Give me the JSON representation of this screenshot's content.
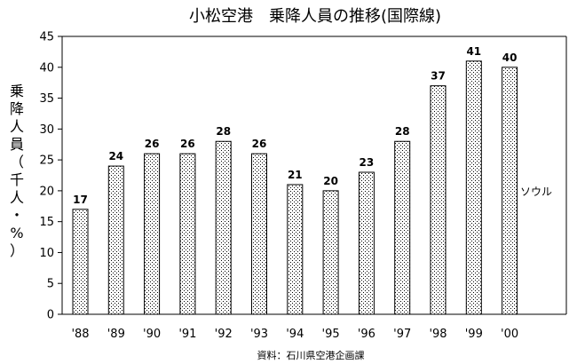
{
  "chart_data": {
    "type": "bar",
    "title": "小松空港　乗降人員の推移(国際線)",
    "ylabel": "乗降人員（千人・%）",
    "xlabel": "",
    "categories": [
      "'88",
      "'89",
      "'90",
      "'91",
      "'92",
      "'93",
      "'94",
      "'95",
      "'96",
      "'97",
      "'98",
      "'99",
      "'00"
    ],
    "values": [
      17,
      24,
      26,
      26,
      28,
      26,
      21,
      20,
      23,
      28,
      37,
      41,
      40
    ],
    "value_labels": [
      "17",
      "24",
      "26",
      "26",
      "28",
      "26",
      "21",
      "20",
      "23",
      "28",
      "37",
      "41",
      "40"
    ],
    "ylim": [
      0,
      45
    ],
    "yticks": [
      "0",
      "5",
      "10",
      "15",
      "20",
      "25",
      "30",
      "35",
      "40",
      "45"
    ],
    "grid": false,
    "annotation": "ソウル",
    "source": "資料：石川県空港企画課"
  }
}
